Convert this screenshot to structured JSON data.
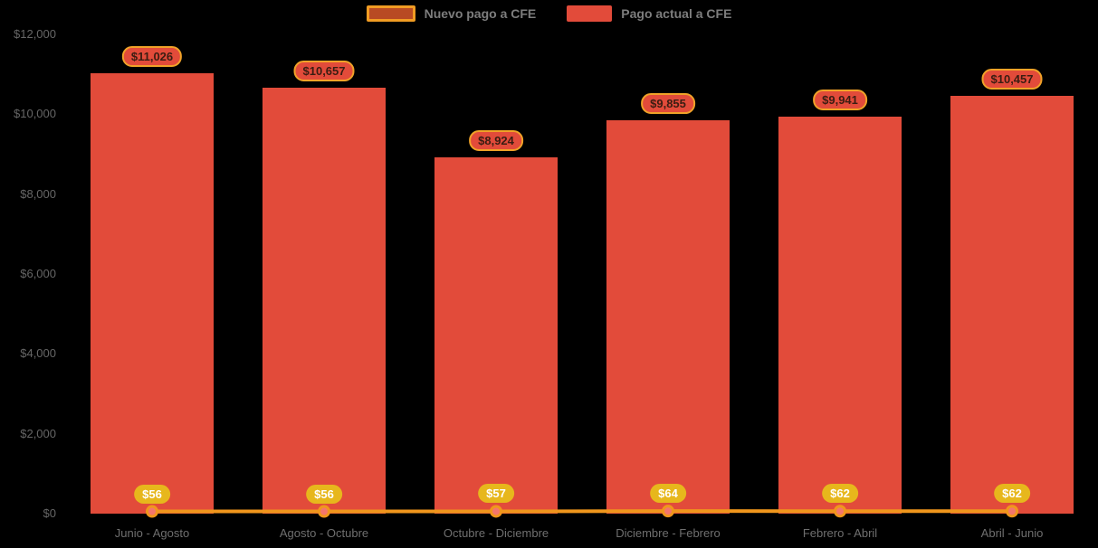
{
  "background": "#000000",
  "colors": {
    "bar": "#e24b3a",
    "line": "#f0961c",
    "marker_fill": "#f4766b",
    "marker_stroke": "#f0961c",
    "bar_label_bg": "#e24b3a",
    "bar_label_border": "#f0a228",
    "point_label_bg": "#e7b71c",
    "axis_text": "#6f6f6f",
    "legend_text": "#7d7d7d"
  },
  "legend": [
    {
      "label": "Nuevo pago a CFE"
    },
    {
      "label": "Pago actual a CFE"
    }
  ],
  "chart_data": {
    "type": "bar",
    "title": "",
    "categories": [
      "Junio - Agosto",
      "Agosto - Octubre",
      "Octubre - Diciembre",
      "Diciembre - Febrero",
      "Febrero - Abril",
      "Abril - Junio"
    ],
    "series": [
      {
        "name": "Pago actual a CFE",
        "type": "bar",
        "values": [
          11026,
          10657,
          8924,
          9855,
          9941,
          10457
        ],
        "labels": [
          "$11,026",
          "$10,657",
          "$8,924",
          "$9,855",
          "$9,941",
          "$10,457"
        ]
      },
      {
        "name": "Nuevo pago a CFE",
        "type": "line",
        "values": [
          56,
          56,
          57,
          64,
          62,
          62
        ],
        "labels": [
          "$56",
          "$56",
          "$57",
          "$64",
          "$62",
          "$62"
        ]
      }
    ],
    "y_axis": {
      "min": 0,
      "max": 12000,
      "ticks": [
        {
          "value": 0,
          "label": "$0"
        },
        {
          "value": 2000,
          "label": "$2,000"
        },
        {
          "value": 4000,
          "label": "$4,000"
        },
        {
          "value": 6000,
          "label": "$6,000"
        },
        {
          "value": 8000,
          "label": "$8,000"
        },
        {
          "value": 10000,
          "label": "$10,000"
        },
        {
          "value": 12000,
          "label": "$12,000"
        }
      ]
    },
    "grid": false,
    "legend_position": "top-center"
  }
}
